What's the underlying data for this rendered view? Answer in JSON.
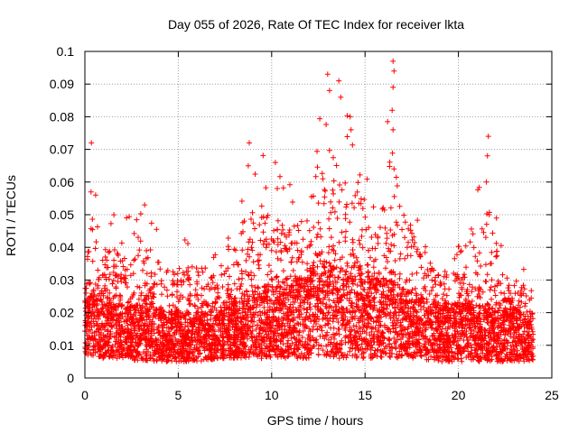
{
  "chart_data": {
    "type": "scatter",
    "title": "Day 055 of 2026, Rate Of TEC Index for receiver lkta",
    "xlabel": "GPS time / hours",
    "ylabel": "ROTI / TECUs",
    "xlim": [
      0,
      25
    ],
    "ylim": [
      0,
      0.1
    ],
    "x_ticks": [
      0,
      5,
      10,
      15,
      20,
      25
    ],
    "x_tick_labels": [
      "0",
      "5",
      "10",
      "15",
      "20",
      "25"
    ],
    "y_ticks": [
      0,
      0.01,
      0.02,
      0.03,
      0.04,
      0.05,
      0.06,
      0.07,
      0.08,
      0.09,
      0.1
    ],
    "y_tick_labels": [
      "0",
      "0.01",
      "0.02",
      "0.03",
      "0.04",
      "0.05",
      "0.06",
      "0.07",
      "0.08",
      "0.09",
      "0.1"
    ],
    "grid": true,
    "marker": "plus",
    "colors": {
      "series": "#ff0000",
      "grid": "#a0a0a0",
      "axis": "#000000"
    },
    "series": [
      {
        "name": "ROTI",
        "x_range": [
          0,
          24
        ],
        "band_profile": [
          {
            "x": 0.0,
            "low": 0.007,
            "high": 0.022,
            "peak": 0.03
          },
          {
            "x": 0.35,
            "low": 0.007,
            "high": 0.026,
            "peak": 0.072
          },
          {
            "x": 1.0,
            "low": 0.006,
            "high": 0.024,
            "peak": 0.052
          },
          {
            "x": 2.0,
            "low": 0.006,
            "high": 0.022,
            "peak": 0.05
          },
          {
            "x": 3.2,
            "low": 0.005,
            "high": 0.022,
            "peak": 0.053
          },
          {
            "x": 4.5,
            "low": 0.005,
            "high": 0.02,
            "peak": 0.04
          },
          {
            "x": 6.0,
            "low": 0.005,
            "high": 0.02,
            "peak": 0.045
          },
          {
            "x": 7.5,
            "low": 0.006,
            "high": 0.021,
            "peak": 0.04
          },
          {
            "x": 8.8,
            "low": 0.006,
            "high": 0.026,
            "peak": 0.072
          },
          {
            "x": 10.2,
            "low": 0.006,
            "high": 0.028,
            "peak": 0.066
          },
          {
            "x": 11.5,
            "low": 0.006,
            "high": 0.03,
            "peak": 0.055
          },
          {
            "x": 13.0,
            "low": 0.006,
            "high": 0.034,
            "peak": 0.093
          },
          {
            "x": 13.5,
            "low": 0.006,
            "high": 0.034,
            "peak": 0.091
          },
          {
            "x": 14.3,
            "low": 0.006,
            "high": 0.032,
            "peak": 0.08
          },
          {
            "x": 15.6,
            "low": 0.006,
            "high": 0.03,
            "peak": 0.058
          },
          {
            "x": 16.5,
            "low": 0.006,
            "high": 0.03,
            "peak": 0.097
          },
          {
            "x": 17.8,
            "low": 0.006,
            "high": 0.024,
            "peak": 0.05
          },
          {
            "x": 19.0,
            "low": 0.005,
            "high": 0.022,
            "peak": 0.038
          },
          {
            "x": 20.3,
            "low": 0.005,
            "high": 0.022,
            "peak": 0.042
          },
          {
            "x": 21.6,
            "low": 0.005,
            "high": 0.022,
            "peak": 0.074
          },
          {
            "x": 22.5,
            "low": 0.005,
            "high": 0.021,
            "peak": 0.035
          },
          {
            "x": 24.0,
            "low": 0.005,
            "high": 0.02,
            "peak": 0.034
          }
        ],
        "highlights": [
          {
            "x": 0.35,
            "y": 0.072
          },
          {
            "x": 0.33,
            "y": 0.057
          },
          {
            "x": 3.2,
            "y": 0.053
          },
          {
            "x": 8.8,
            "y": 0.072
          },
          {
            "x": 8.75,
            "y": 0.065
          },
          {
            "x": 10.2,
            "y": 0.066
          },
          {
            "x": 10.3,
            "y": 0.058
          },
          {
            "x": 13.0,
            "y": 0.093
          },
          {
            "x": 13.1,
            "y": 0.088
          },
          {
            "x": 13.6,
            "y": 0.091
          },
          {
            "x": 13.7,
            "y": 0.086
          },
          {
            "x": 14.2,
            "y": 0.08
          },
          {
            "x": 14.25,
            "y": 0.076
          },
          {
            "x": 16.5,
            "y": 0.097
          },
          {
            "x": 16.55,
            "y": 0.094
          },
          {
            "x": 16.5,
            "y": 0.089
          },
          {
            "x": 16.45,
            "y": 0.082
          },
          {
            "x": 16.5,
            "y": 0.076
          },
          {
            "x": 16.55,
            "y": 0.064
          },
          {
            "x": 21.6,
            "y": 0.074
          },
          {
            "x": 21.55,
            "y": 0.068
          },
          {
            "x": 21.5,
            "y": 0.06
          },
          {
            "x": 21.65,
            "y": 0.05
          }
        ]
      }
    ]
  }
}
